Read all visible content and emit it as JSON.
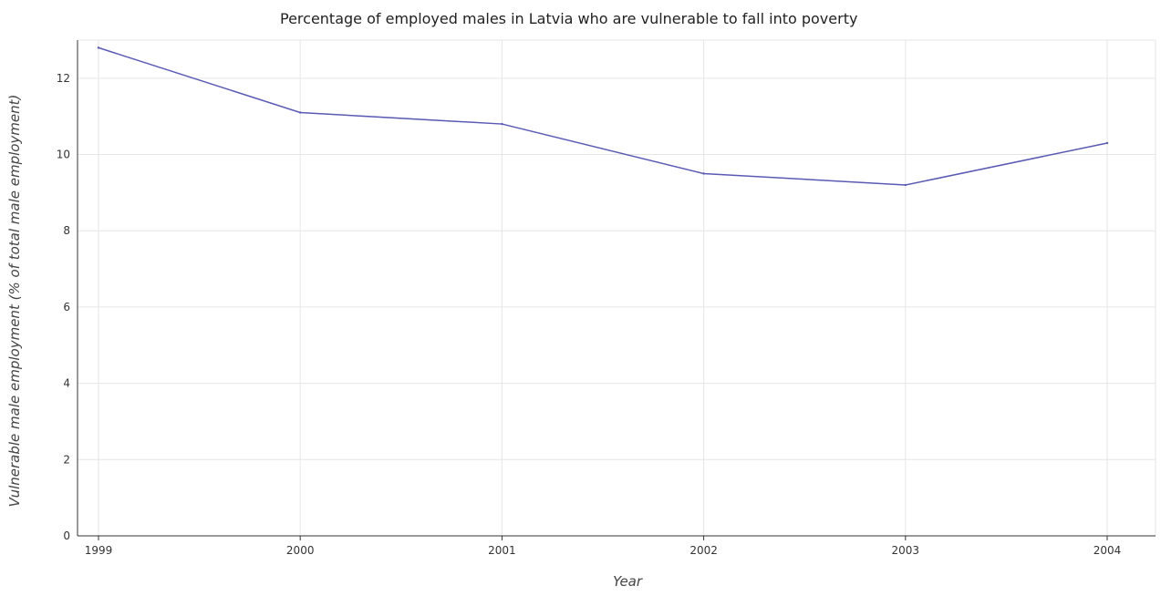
{
  "chart_data": {
    "type": "line",
    "title": "Percentage of employed males in Latvia who are vulnerable to fall into poverty",
    "xlabel": "Year",
    "ylabel": "Vulnerable male employment (% of total male employment)",
    "categories": [
      "1999",
      "2000",
      "2001",
      "2002",
      "2003",
      "2004"
    ],
    "series": [
      {
        "values": [
          12.8,
          11.1,
          10.8,
          9.5,
          9.2,
          10.3
        ],
        "color": "#5a5ab4"
      }
    ],
    "ylim": [
      0,
      13
    ],
    "yticks": [
      0,
      2,
      4,
      6,
      8,
      10,
      12
    ],
    "grid": true,
    "legend": "none"
  }
}
